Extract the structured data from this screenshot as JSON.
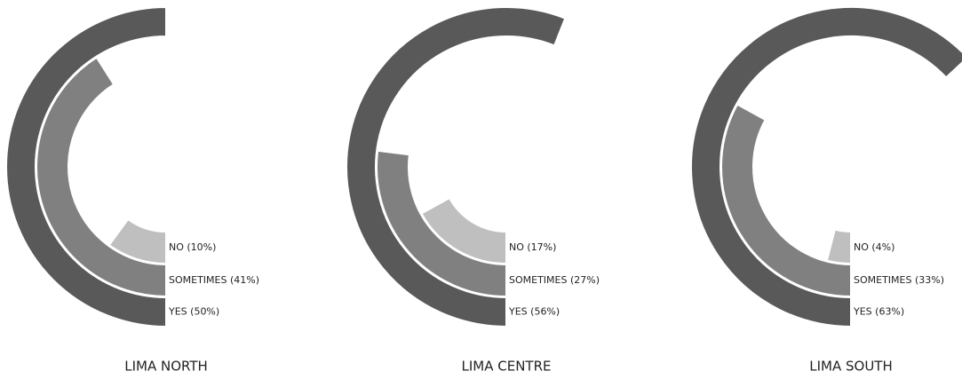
{
  "chart_data": [
    {
      "type": "radial_bar",
      "title": "LIMA NORTH",
      "values": [
        50,
        41,
        10
      ],
      "value_labels": [
        "YES (50%)",
        "SOMETIMES (41%)",
        "NO (10%)"
      ],
      "colors": [
        "#595959",
        "#808080",
        "#bfbfbf"
      ]
    },
    {
      "type": "radial_bar",
      "title": "LIMA CENTRE",
      "values": [
        56,
        27,
        17
      ],
      "value_labels": [
        "YES (56%)",
        "SOMETIMES (27%)",
        "NO (17%)"
      ],
      "colors": [
        "#595959",
        "#808080",
        "#bfbfbf"
      ]
    },
    {
      "type": "radial_bar",
      "title": "LIMA SOUTH",
      "values": [
        63,
        33,
        4
      ],
      "value_labels": [
        "YES (63%)",
        "SOMETIMES (33%)",
        "NO (4%)"
      ],
      "colors": [
        "#595959",
        "#808080",
        "#bfbfbf"
      ]
    }
  ]
}
